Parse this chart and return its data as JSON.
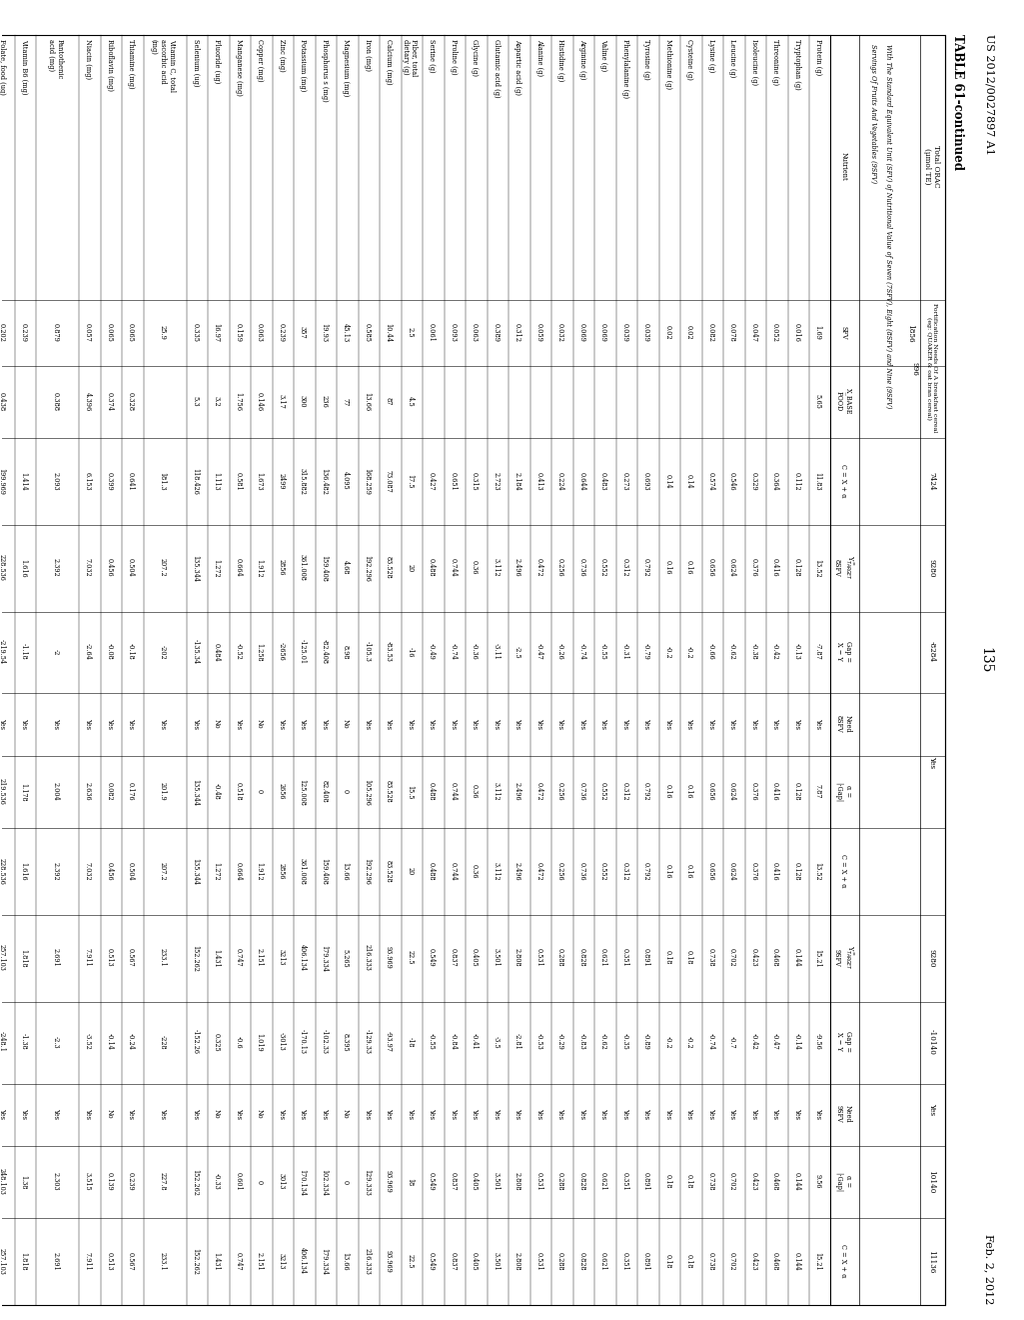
{
  "page_header_left": "US 2012/0027897 A1",
  "page_header_right": "Feb. 2, 2012",
  "page_number": "135",
  "table_title": "TABLE 61-continued",
  "header_line1_left": "Total ORAC\n(μmol TE)",
  "header_line1_fort": "Fortification Needs Of A breakfast cereal (eg: QUAKER & oat bran cereal)",
  "header_line1_996": "996",
  "header_line1_1856": "1856",
  "col_top_labels": [
    "7424",
    "9280",
    "-8284",
    "Yes",
    "8284",
    "9280",
    "-10140",
    "Yes",
    "10140",
    "11136"
  ],
  "subtitle1": "With The Standard Equivalent Unit (SFV) of Nutritional Value of Seven (7SFV), Eight (8SFV) and Nine (9SFV)",
  "subtitle2": "Servings Of Fruits And Vegetables (9SFV)",
  "col_headers": [
    "Nutrient",
    "SFV",
    "X_BASEFOOD",
    "C = X + α",
    "Y_TARGET\n8SFV",
    "Gap =\nX − Y",
    "Need\n8SFV",
    "α =\n|-Gap|",
    "C = X + α",
    "Y_TARGET\n9SFV",
    "Gap =\nX − Y",
    "Need\n9SFV",
    "α =\n|-Gap|",
    "C = X + α"
  ],
  "nutrients": [
    "Protein (g)",
    "Tryptophan (g)",
    "Threonine (g)",
    "Isoleucine (g)",
    "Leucine (g)",
    "Lysine (g)",
    "Cysteine (g)",
    "Methionine (g)",
    "Tyrosine (g)",
    "Phenylalanine (g)",
    "Valine (g)",
    "Arginine (g)",
    "Histidine (g)",
    "Alanine (g)",
    "Aspartic acid (g)",
    "Glutamic acid (g)",
    "Glycine (g)",
    "Proline (g)",
    "Serine (g)",
    "Fiber, total\ndietary (g)",
    "Calcium (mg)",
    "Iron (mg)",
    "Magnesium (mg)",
    "Phosphorus s (mg)",
    "Potassium (mg)",
    "Zinc (mg)",
    "Copper (mg)",
    "Manganese (mg)",
    "Fluoride (ug)",
    "Selenium (ug)",
    "Vitamin C, total\nascorbic acid\n(mg)",
    "Thiamine (mg)",
    "Riboflavin (mg)",
    "Niacin (mg)",
    "Pantothenic\nacid (mg)",
    "Vitamin B6 (mg)",
    "Folate, food (ug)"
  ],
  "sfv_values": [
    "1.69",
    "0.016",
    "0.052",
    "0.047",
    "0.078",
    "0.082",
    "0.02",
    "0.02",
    "0.039",
    "0.039",
    "0.069",
    "0.069",
    "0.032",
    "0.059",
    "0.312",
    "0.389",
    "0.063",
    "0.093",
    "0.061",
    "2.5",
    "10.44",
    "0.585",
    "45.13",
    "19.93",
    "357",
    "0.239",
    "0.063",
    "0.159",
    "16.97",
    "0.335",
    "25.9",
    "0.065",
    "0.065",
    "0.057",
    "0.879",
    "0.239",
    "0.202"
  ],
  "x_base_values": [
    "5.65",
    "",
    "",
    "",
    "",
    "",
    "",
    "",
    "",
    "",
    "",
    "",
    "",
    "",
    "",
    "",
    "",
    "",
    "",
    "4.5",
    "87",
    "13.66",
    "77",
    "236",
    "300",
    "3.17",
    "0.146",
    "1.756",
    "3.2",
    "5.3",
    "",
    "0.328",
    "0.374",
    "4.396",
    "0.388",
    "",
    "0.438"
  ],
  "c_7424": [
    "11.83",
    "0.112",
    "0.364",
    "0.329",
    "0.546",
    "0.574",
    "0.14",
    "0.14",
    "0.693",
    "0.273",
    "0.483",
    "0.644",
    "0.224",
    "0.413",
    "2.184",
    "2.723",
    "0.315",
    "0.651",
    "0.427",
    "17.5",
    "73.087",
    "168.259",
    "4.095",
    "136.482",
    "315.882",
    "2499",
    "1.673",
    "0.581",
    "1.113",
    "118.426",
    "181.3",
    "0.641",
    "0.399",
    "6.153",
    "2.093",
    "1.414",
    "199.969"
  ],
  "y8sfv": [
    "13.52",
    "0.128",
    "0.416",
    "0.376",
    "0.624",
    "0.656",
    "0.16",
    "0.16",
    "0.792",
    "0.312",
    "0.552",
    "0.736",
    "0.256",
    "0.472",
    "2.496",
    "3.112",
    "0.36",
    "0.744",
    "0.488",
    "20",
    "83.528",
    "192.296",
    "4.68",
    "159.408",
    "361.008",
    "2856",
    "1.912",
    "0.664",
    "1.272",
    "135.344",
    "207.2",
    "0.504",
    "0.456",
    "7.032",
    "2.392",
    "1.616",
    "228.536"
  ],
  "gap8": [
    "-7.87",
    "-0.13",
    "-0.42",
    "-0.38",
    "-0.62",
    "-0.66",
    "-0.2",
    "-0.2",
    "-0.79",
    "-0.31",
    "-0.55",
    "-0.74",
    "-0.26",
    "-0.47",
    "-2.5",
    "-3.11",
    "-0.36",
    "-0.74",
    "-0.49",
    "-16",
    "-83.53",
    "-105.3",
    "8.98",
    "-82.408",
    "-125.01",
    "-2656",
    "1.258",
    "-0.52",
    "0.484",
    "-135.34",
    "-202",
    "-0.18",
    "-0.08",
    "-2.64",
    "-2",
    "-1.18",
    "-219.54"
  ],
  "need8": [
    "Yes",
    "Yes",
    "Yes",
    "Yes",
    "Yes",
    "Yes",
    "Yes",
    "Yes",
    "Yes",
    "Yes",
    "Yes",
    "Yes",
    "Yes",
    "Yes",
    "Yes",
    "Yes",
    "Yes",
    "Yes",
    "Yes",
    "Yes",
    "Yes",
    "Yes",
    "No",
    "Yes",
    "Yes",
    "Yes",
    "No",
    "Yes",
    "No",
    "Yes",
    "Yes",
    "Yes",
    "Yes",
    "Yes",
    "Yes",
    "Yes",
    "Yes"
  ],
  "alpha8": [
    "7.87",
    "0.128",
    "0.416",
    "0.376",
    "0.624",
    "0.656",
    "0.16",
    "0.16",
    "0.792",
    "0.312",
    "0.552",
    "0.736",
    "0.256",
    "0.472",
    "2.496",
    "3.112",
    "0.36",
    "0.744",
    "0.488",
    "15.5",
    "83.528",
    "105.296",
    "0",
    "82.408",
    "125.008",
    "2656",
    "0",
    "0.518",
    "-0.48",
    "135.344",
    "201.9",
    "0.176",
    "0.082",
    "2.636",
    "2.004",
    "1.178",
    "219.536"
  ],
  "c_9280": [
    "13.52",
    "0.128",
    "0.416",
    "0.376",
    "0.624",
    "0.656",
    "0.16",
    "0.16",
    "0.792",
    "0.312",
    "0.552",
    "0.736",
    "0.256",
    "0.472",
    "2.496",
    "3.112",
    "0.36",
    "0.744",
    "0.488",
    "20",
    "83.528",
    "192.296",
    "13.66",
    "159.408",
    "361.008",
    "2856",
    "1.912",
    "0.664",
    "1.272",
    "135.344",
    "207.2",
    "0.504",
    "0.456",
    "7.032",
    "2.392",
    "1.616",
    "228.536"
  ],
  "y9sfv": [
    "15.21",
    "0.144",
    "0.468",
    "0.423",
    "0.702",
    "0.738",
    "0.18",
    "0.18",
    "0.891",
    "0.351",
    "0.621",
    "0.828",
    "0.288",
    "0.531",
    "2.808",
    "3.501",
    "0.405",
    "0.837",
    "0.549",
    "22.5",
    "93.969",
    "216.333",
    "5.265",
    "179.334",
    "406.134",
    "3213",
    "2.151",
    "0.747",
    "1.431",
    "152.262",
    "233.1",
    "0.567",
    "0.513",
    "7.911",
    "2.691",
    "1.818",
    "257.103"
  ],
  "gap9": [
    "-9.56",
    "-0.14",
    "-0.47",
    "-0.42",
    "-0.7",
    "-0.74",
    "-0.2",
    "-0.2",
    "-0.89",
    "-0.35",
    "-0.62",
    "-0.83",
    "-0.29",
    "-0.53",
    "-2.81",
    "-3.5",
    "-0.41",
    "-0.84",
    "-0.55",
    "-18",
    "-93.97",
    "-129.33",
    "8.395",
    "-102.33",
    "-170.13",
    "-3013",
    "1.019",
    "-0.6",
    "0.325",
    "-152.26",
    "-228",
    "-0.24",
    "-0.14",
    "-3.52",
    "-2.3",
    "-1.38",
    "-248.1"
  ],
  "need9": [
    "Yes",
    "Yes",
    "Yes",
    "Yes",
    "Yes",
    "Yes",
    "Yes",
    "Yes",
    "Yes",
    "Yes",
    "Yes",
    "Yes",
    "Yes",
    "Yes",
    "Yes",
    "Yes",
    "Yes",
    "Yes",
    "Yes",
    "Yes",
    "Yes",
    "Yes",
    "No",
    "Yes",
    "Yes",
    "Yes",
    "No",
    "Yes",
    "No",
    "Yes",
    "Yes",
    "Yes",
    "No",
    "Yes",
    "Yes",
    "Yes",
    "Yes"
  ],
  "alpha9": [
    "9.56",
    "0.144",
    "0.468",
    "0.423",
    "0.702",
    "0.738",
    "0.18",
    "0.18",
    "0.891",
    "0.351",
    "0.621",
    "0.828",
    "0.288",
    "0.531",
    "2.808",
    "3.501",
    "0.405",
    "0.837",
    "0.549",
    "18",
    "93.969",
    "129.333",
    "0",
    "102.334",
    "170.134",
    "3013",
    "0",
    "0.601",
    "-0.33",
    "152.262",
    "227.8",
    "0.239",
    "0.139",
    "3.515",
    "2.303",
    "1.38",
    "248.103"
  ],
  "c_11136": [
    "15.21",
    "0.144",
    "0.468",
    "0.423",
    "0.702",
    "0.738",
    "0.18",
    "0.18",
    "0.891",
    "0.351",
    "0.621",
    "0.828",
    "0.288",
    "0.531",
    "2.808",
    "3.501",
    "0.405",
    "0.837",
    "0.549",
    "22.5",
    "93.969",
    "216.333",
    "13.66",
    "179.334",
    "406.134",
    "3213",
    "2.151",
    "0.747",
    "1.431",
    "152.262",
    "233.1",
    "0.567",
    "0.513",
    "7.911",
    "2.691",
    "1.818",
    "257.103"
  ],
  "row_heights": [
    1,
    1,
    1,
    1,
    1,
    1,
    1,
    1,
    1,
    1,
    1,
    1,
    1,
    1,
    1,
    1,
    1,
    1,
    1,
    1,
    1,
    1,
    1,
    1,
    1,
    1,
    1,
    1,
    1,
    1,
    2,
    1,
    1,
    1,
    2,
    1,
    1
  ],
  "multiline_rows": [
    30,
    34
  ]
}
